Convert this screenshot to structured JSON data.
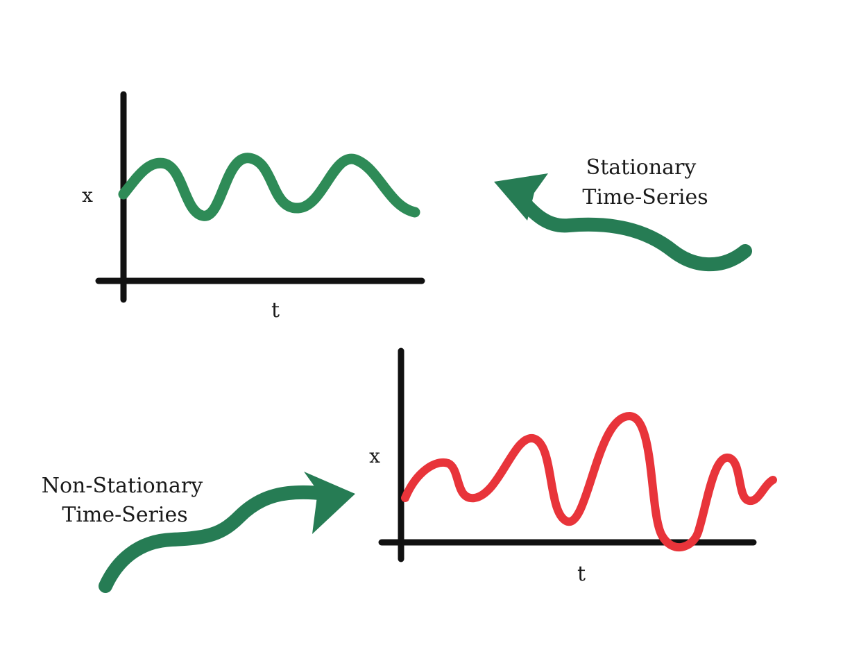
{
  "colors": {
    "stationary": "#2e8b57",
    "non_stationary": "#e8343a",
    "arrow": "#267c54",
    "axis": "#111111"
  },
  "stationary_plot": {
    "y_label": "x",
    "x_label": "t",
    "annotation": [
      "Stationary",
      "Time-Series"
    ]
  },
  "non_stationary_plot": {
    "y_label": "x",
    "x_label": "t",
    "annotation": [
      "Non-Stationary",
      "Time-Series"
    ]
  }
}
